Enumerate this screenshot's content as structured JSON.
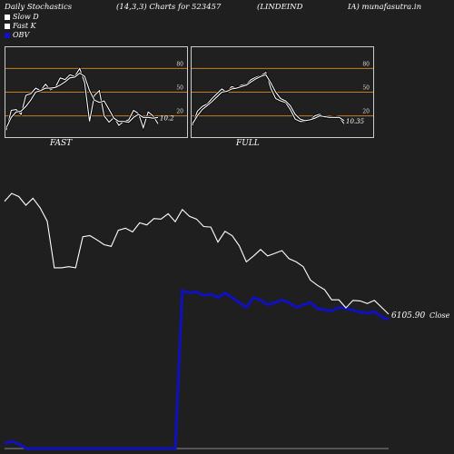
{
  "header": {
    "title": "Daily Stochastics",
    "params": "(14,3,3) Charts for 523457",
    "symbol_part1": "(LINDEIND",
    "symbol_part2": "IA) munafasutra.in"
  },
  "legend": [
    {
      "label": "Slow  D",
      "color": "#ffffff"
    },
    {
      "label": "Fast K",
      "color": "#ffffff"
    },
    {
      "label": "OBV",
      "color": "#1111cc"
    }
  ],
  "colors": {
    "background": "#1f1f1f",
    "level_line": "#c87a1e",
    "price": "#ffffff",
    "obv": "#1010c0"
  },
  "chart_data": [
    {
      "type": "line",
      "title": "FAST",
      "levels": [
        80,
        50,
        20
      ],
      "ylim": [
        0,
        100
      ],
      "last_value_label": "10.2",
      "series": [
        {
          "name": "Fast K",
          "values": [
            2,
            27,
            28,
            22,
            46,
            48,
            55,
            52,
            60,
            53,
            56,
            68,
            66,
            72,
            70,
            80,
            62,
            13,
            46,
            52,
            20,
            12,
            18,
            8,
            13,
            15,
            27,
            23,
            5,
            25,
            20,
            10
          ]
        },
        {
          "name": "Slow  D",
          "values": [
            5,
            18,
            25,
            26,
            32,
            40,
            50,
            52,
            55,
            55,
            56,
            59,
            63,
            68,
            69,
            74,
            70,
            52,
            40,
            37,
            39,
            28,
            17,
            13,
            13,
            12,
            18,
            22,
            18,
            18,
            17,
            18
          ]
        }
      ]
    },
    {
      "type": "line",
      "title": "FULL",
      "levels": [
        80,
        50,
        20
      ],
      "ylim": [
        0,
        100
      ],
      "last_value_label": "10.35",
      "series": [
        {
          "name": "Fast K",
          "values": [
            8,
            26,
            32,
            35,
            42,
            48,
            54,
            50,
            57,
            55,
            59,
            60,
            66,
            69,
            71,
            75,
            55,
            42,
            39,
            37,
            28,
            16,
            13,
            13,
            15,
            20,
            22,
            18,
            18,
            19,
            18,
            10
          ]
        },
        {
          "name": "Slow  D",
          "values": [
            10,
            20,
            28,
            33,
            38,
            44,
            50,
            51,
            54,
            55,
            57,
            59,
            63,
            67,
            70,
            72,
            62,
            50,
            42,
            39,
            33,
            22,
            16,
            14,
            15,
            17,
            20,
            19,
            18,
            18,
            18,
            14
          ]
        }
      ]
    },
    {
      "type": "line",
      "title": "",
      "last_value_label": "6105.90",
      "last_value_suffix": "Close",
      "series": [
        {
          "name": "Close",
          "values": [
            7160,
            7235,
            7205,
            7125,
            7190,
            7100,
            6975,
            6540,
            6540,
            6550,
            6540,
            6830,
            6840,
            6800,
            6755,
            6740,
            6890,
            6910,
            6875,
            6960,
            6940,
            7000,
            6995,
            7045,
            6970,
            7085,
            7020,
            6995,
            6925,
            6920,
            6780,
            6880,
            6840,
            6745,
            6595,
            6650,
            6710,
            6650,
            6675,
            6700,
            6625,
            6595,
            6550,
            6425,
            6375,
            6335,
            6240,
            6240,
            6165,
            6235,
            6230,
            6205,
            6235,
            6170,
            6105.9
          ]
        },
        {
          "name": "OBV",
          "values": [
            -30,
            -20,
            -30,
            -50,
            -50,
            -50,
            -50,
            -50,
            -50,
            -50,
            -50,
            -50,
            -50,
            -50,
            -50,
            -50,
            -50,
            -50,
            -50,
            -50,
            -50,
            -50,
            -50,
            -50,
            -50,
            610,
            600,
            605,
            590,
            595,
            580,
            600,
            580,
            560,
            540,
            580,
            570,
            550,
            560,
            570,
            560,
            540,
            550,
            560,
            535,
            530,
            525,
            540,
            535,
            528,
            520,
            515,
            522,
            500,
            490
          ]
        }
      ]
    }
  ]
}
